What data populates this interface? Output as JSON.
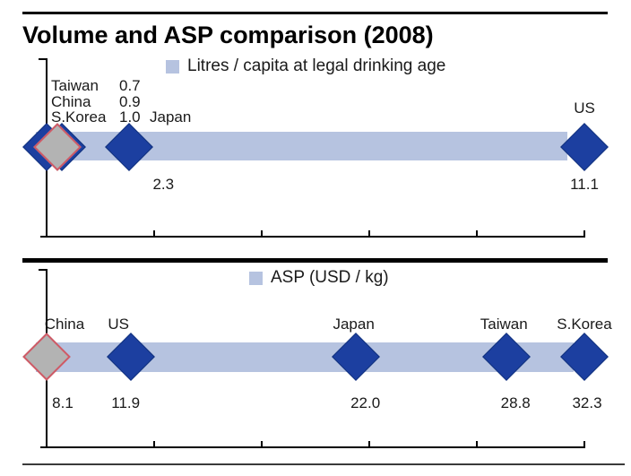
{
  "title": "Volume and ASP comparison (2008)",
  "chart_data": [
    {
      "type": "scatter",
      "subtype": "one-dimensional-horizontal",
      "legend": "Litres / capita at legal drinking age",
      "legend_position": "top-center",
      "axis_range": [
        0.7,
        11.1
      ],
      "grid": false,
      "points": [
        {
          "name": "Taiwan",
          "value": 0.7,
          "value_label": "0.7",
          "marker": "blue",
          "labeling": "callout"
        },
        {
          "name": "China",
          "value": 0.9,
          "value_label": "0.9",
          "marker": "gray",
          "labeling": "callout"
        },
        {
          "name": "S.Korea",
          "value": 1.0,
          "value_label": "1.0",
          "marker": "blue",
          "labeling": "callout"
        },
        {
          "name": "Japan",
          "value": 2.3,
          "value_label": "2.3",
          "marker": "blue",
          "labeling": "value-below-name-in-callout"
        },
        {
          "name": "US",
          "value": 11.1,
          "value_label": "11.1",
          "marker": "blue",
          "labeling": "name-above-value-below"
        }
      ]
    },
    {
      "type": "scatter",
      "subtype": "one-dimensional-horizontal",
      "legend": "ASP (USD / kg)",
      "legend_position": "top-center",
      "axis_range": [
        8.1,
        32.3
      ],
      "grid": false,
      "points": [
        {
          "name": "China",
          "value": 8.1,
          "value_label": "8.1",
          "marker": "gray",
          "labeling": "name-above-value-below"
        },
        {
          "name": "US",
          "value": 11.9,
          "value_label": "11.9",
          "marker": "blue",
          "labeling": "name-above-value-below"
        },
        {
          "name": "Japan",
          "value": 22.0,
          "value_label": "22.0",
          "marker": "blue",
          "labeling": "name-above-value-below"
        },
        {
          "name": "Taiwan",
          "value": 28.8,
          "value_label": "28.8",
          "marker": "blue",
          "labeling": "name-above-value-below"
        },
        {
          "name": "S.Korea",
          "value": 32.3,
          "value_label": "32.3",
          "marker": "blue",
          "labeling": "name-above-value-below"
        }
      ]
    }
  ],
  "colors": {
    "band": "#b6c3e0",
    "marker_blue": "#1c3fa0",
    "marker_blue_border": "#10307c",
    "marker_gray": "#b3b3b3",
    "marker_gray_border": "#cf5a66",
    "text": "#1a1a1a",
    "rule": "#000000"
  }
}
